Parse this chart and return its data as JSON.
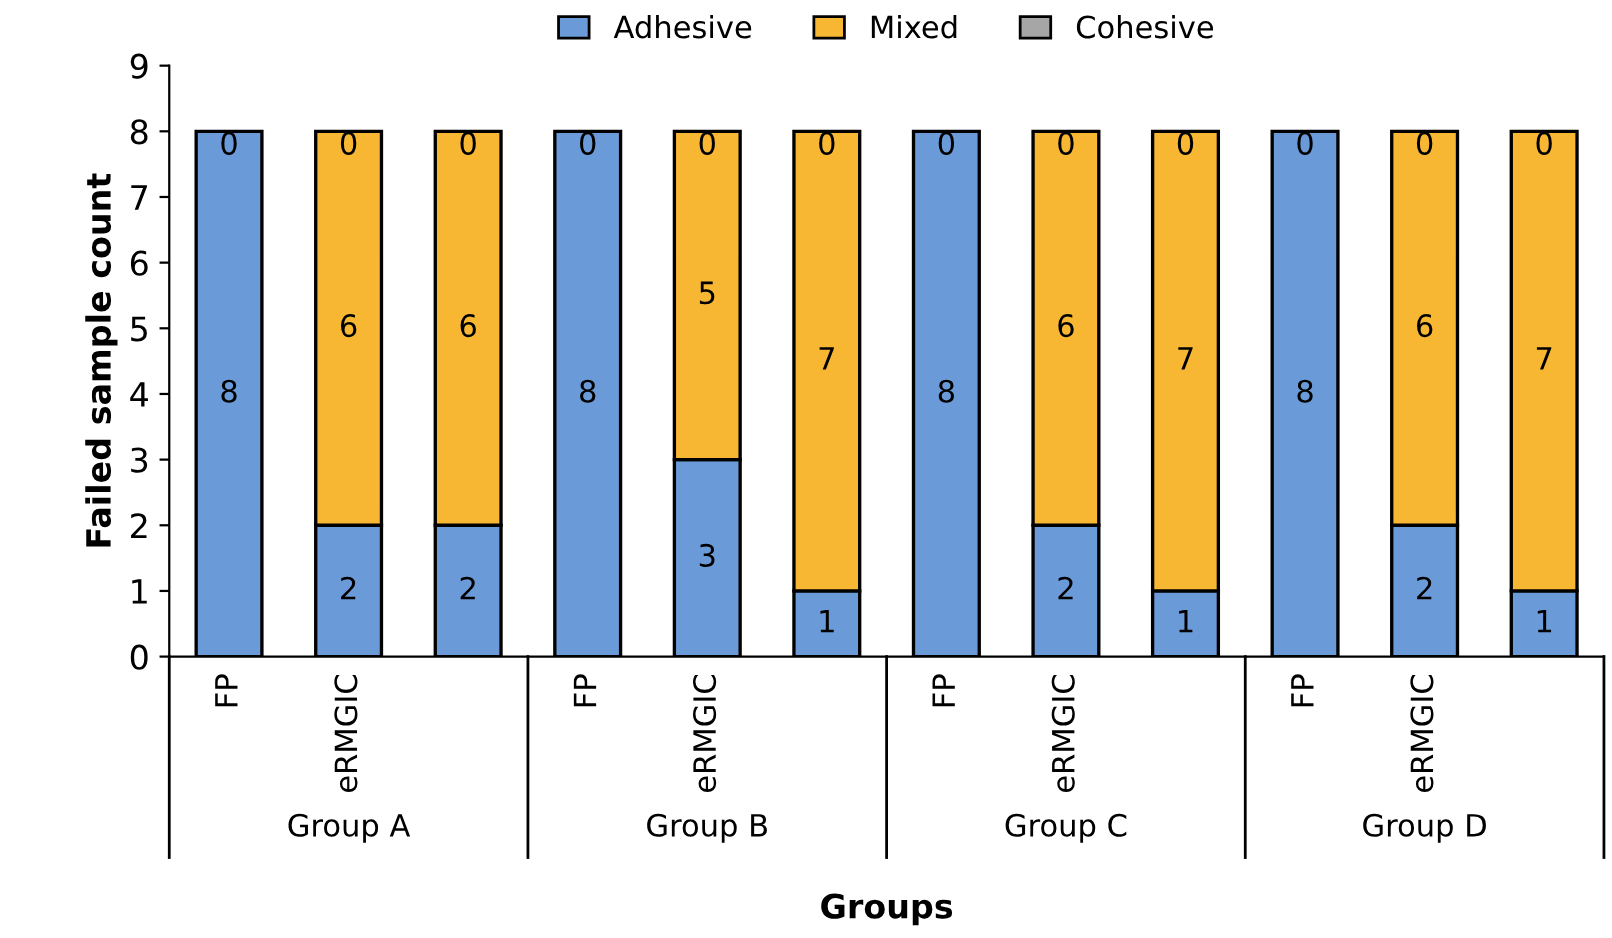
{
  "chart_data": {
    "type": "bar",
    "stacked": true,
    "xlabel": "Groups",
    "ylabel": "Failed sample count",
    "categories": [
      "FP",
      "eRMGIC",
      null,
      "FP",
      "eRMGIC",
      null,
      "FP",
      "eRMGIC",
      null,
      "FP",
      "eRMGIC",
      null
    ],
    "series": [
      {
        "name": "Adhesive",
        "color": "#6a9bd8",
        "values": [
          8,
          2,
          2,
          8,
          3,
          1,
          8,
          2,
          1,
          8,
          2,
          1
        ],
        "value_labels": [
          "8",
          "2",
          "2",
          "8",
          "3",
          "1",
          "8",
          "2",
          "1",
          "8",
          "2",
          "1"
        ]
      },
      {
        "name": "Mixed",
        "color": "#f7b733",
        "values": [
          0,
          6,
          6,
          0,
          5,
          7,
          0,
          6,
          7,
          0,
          6,
          7
        ],
        "value_labels": [
          null,
          "6",
          "6",
          null,
          "5",
          "7",
          null,
          "6",
          "7",
          null,
          "6",
          "7"
        ]
      },
      {
        "name": "Cohesive",
        "color": "#a6a6a6",
        "values": [
          0,
          0,
          0,
          0,
          0,
          0,
          0,
          0,
          0,
          0,
          0,
          0
        ],
        "value_labels": [
          "0",
          "0",
          "0",
          "0",
          "0",
          "0",
          "0",
          "0",
          "0",
          "0",
          "0",
          "0"
        ]
      }
    ],
    "annotations": [
      "Group A",
      "Group B",
      "Group C",
      "Group D"
    ],
    "ylim": [
      0,
      9
    ],
    "yticks": [
      0,
      1,
      2,
      3,
      4,
      5,
      6,
      7,
      8,
      9
    ],
    "legend": "top",
    "grid": false
  }
}
